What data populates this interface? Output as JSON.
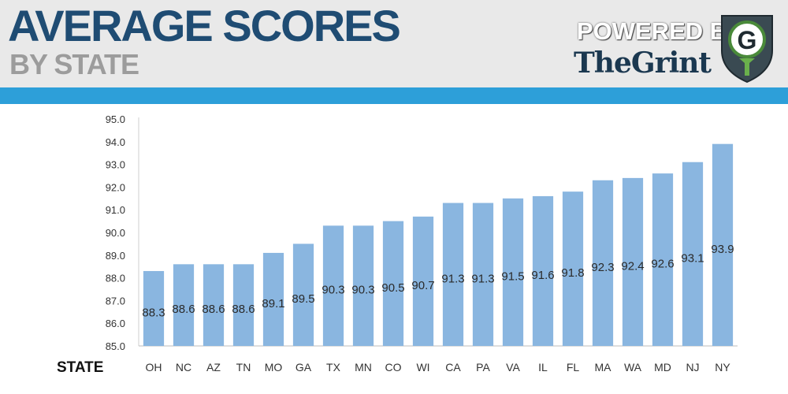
{
  "header": {
    "title": "AVERAGE SCORES",
    "subtitle": "BY STATE",
    "powered_by": "POWERED BY:",
    "brand": "TheGrint",
    "logo_letter": "G",
    "logo_icon": "shield-g-golf-tee-icon"
  },
  "colors": {
    "header_bg": "#e9e9e9",
    "title": "#1f4c73",
    "subtitle": "#9c9c9c",
    "band": "#2d9fd9",
    "bar": "#8ab6e0",
    "shield": "#3a4a52",
    "shield_ring": "#4a8a3a"
  },
  "chart_data": {
    "type": "bar",
    "xlabel": "STATE",
    "ylabel": "",
    "ylim": [
      85.0,
      95.0
    ],
    "yticks": [
      "85.0",
      "86.0",
      "87.0",
      "88.0",
      "89.0",
      "90.0",
      "91.0",
      "92.0",
      "93.0",
      "94.0",
      "95.0"
    ],
    "grid": false,
    "categories": [
      "OH",
      "NC",
      "AZ",
      "TN",
      "MO",
      "GA",
      "TX",
      "MN",
      "CO",
      "WI",
      "CA",
      "PA",
      "VA",
      "IL",
      "FL",
      "MA",
      "WA",
      "MD",
      "NJ",
      "NY"
    ],
    "values": [
      88.3,
      88.6,
      88.6,
      88.6,
      89.1,
      89.5,
      90.3,
      90.3,
      90.5,
      90.7,
      91.3,
      91.3,
      91.5,
      91.6,
      91.8,
      92.3,
      92.4,
      92.6,
      93.1,
      93.9
    ],
    "data_labels": [
      "88.3",
      "88.6",
      "88.6",
      "88.6",
      "89.1",
      "89.5",
      "90.3",
      "90.3",
      "90.5",
      "90.7",
      "91.3",
      "91.3",
      "91.5",
      "91.6",
      "91.8",
      "92.3",
      "92.4",
      "92.6",
      "93.1",
      "93.9"
    ]
  }
}
